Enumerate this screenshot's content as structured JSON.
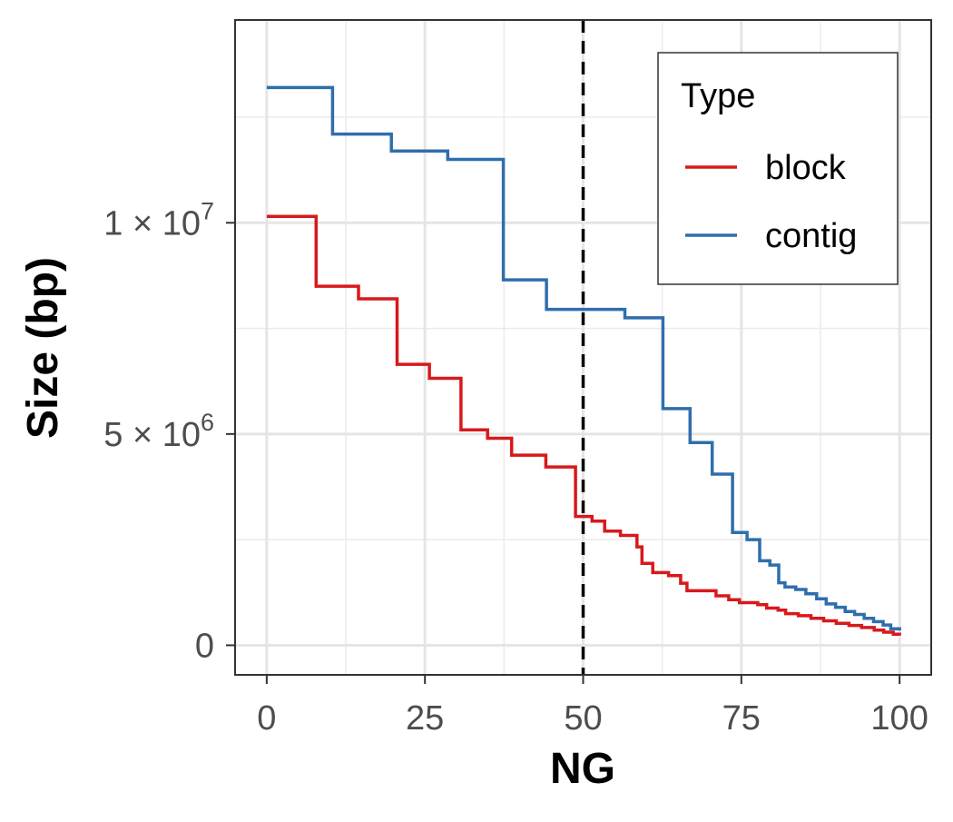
{
  "chart_data": {
    "type": "line",
    "xlabel": "NG",
    "ylabel": "Size (bp)",
    "xlim": [
      -5,
      105
    ],
    "ylim": [
      -700000,
      14800000
    ],
    "x_ticks": [
      0,
      25,
      50,
      75,
      100
    ],
    "x_tick_labels": [
      "0",
      "25",
      "50",
      "75",
      "100"
    ],
    "y_ticks": [
      {
        "value": 0,
        "mantissa": "0",
        "exponent": ""
      },
      {
        "value": 5000000,
        "mantissa": "5 × 10",
        "exponent": "6"
      },
      {
        "value": 10000000,
        "mantissa": "1 × 10",
        "exponent": "7"
      }
    ],
    "y_minor_ticks": [
      2500000,
      7500000,
      12500000
    ],
    "grid": true,
    "reference_line": {
      "x": 50,
      "style": "dashed",
      "color": "#000000"
    },
    "legend": {
      "title": "Type",
      "position": "top-right"
    },
    "series": [
      {
        "name": "block",
        "color": "#d7191c",
        "step": true,
        "points": [
          [
            0,
            10150000
          ],
          [
            7.8,
            8500000
          ],
          [
            14.5,
            8200000
          ],
          [
            20.6,
            6650000
          ],
          [
            25.7,
            6320000
          ],
          [
            30.7,
            5100000
          ],
          [
            34.9,
            4900000
          ],
          [
            38.7,
            4500000
          ],
          [
            44.1,
            4220000
          ],
          [
            48.8,
            3050000
          ],
          [
            51.4,
            2940000
          ],
          [
            53.4,
            2700000
          ],
          [
            55.9,
            2600000
          ],
          [
            58.5,
            2330000
          ],
          [
            59.3,
            1940000
          ],
          [
            61.0,
            1720000
          ],
          [
            63.5,
            1650000
          ],
          [
            65.4,
            1470000
          ],
          [
            66.4,
            1290000
          ],
          [
            71.0,
            1170000
          ],
          [
            73.0,
            1080000
          ],
          [
            74.7,
            1010000
          ],
          [
            77.6,
            960000
          ],
          [
            79.0,
            880000
          ],
          [
            80.8,
            830000
          ],
          [
            82.0,
            750000
          ],
          [
            84.0,
            700000
          ],
          [
            86.0,
            640000
          ],
          [
            88.0,
            580000
          ],
          [
            90.0,
            520000
          ],
          [
            92.0,
            470000
          ],
          [
            94.0,
            420000
          ],
          [
            96.0,
            360000
          ],
          [
            97.5,
            310000
          ],
          [
            99.0,
            260000
          ],
          [
            100,
            230000
          ]
        ]
      },
      {
        "name": "contig",
        "color": "#2f6ead",
        "step": true,
        "points": [
          [
            0,
            13200000
          ],
          [
            10.4,
            12100000
          ],
          [
            19.7,
            11700000
          ],
          [
            28.6,
            11500000
          ],
          [
            37.4,
            8650000
          ],
          [
            44.2,
            7950000
          ],
          [
            56.6,
            7750000
          ],
          [
            62.6,
            5600000
          ],
          [
            66.9,
            4800000
          ],
          [
            70.4,
            4050000
          ],
          [
            73.6,
            2670000
          ],
          [
            75.9,
            2500000
          ],
          [
            77.9,
            2000000
          ],
          [
            79.5,
            1900000
          ],
          [
            80.9,
            1480000
          ],
          [
            81.9,
            1380000
          ],
          [
            83.6,
            1320000
          ],
          [
            85.2,
            1220000
          ],
          [
            86.9,
            1100000
          ],
          [
            88.4,
            980000
          ],
          [
            89.9,
            900000
          ],
          [
            91.4,
            800000
          ],
          [
            92.9,
            730000
          ],
          [
            94.4,
            640000
          ],
          [
            95.9,
            560000
          ],
          [
            97.4,
            480000
          ],
          [
            98.6,
            390000
          ],
          [
            100,
            350000
          ]
        ]
      }
    ]
  }
}
